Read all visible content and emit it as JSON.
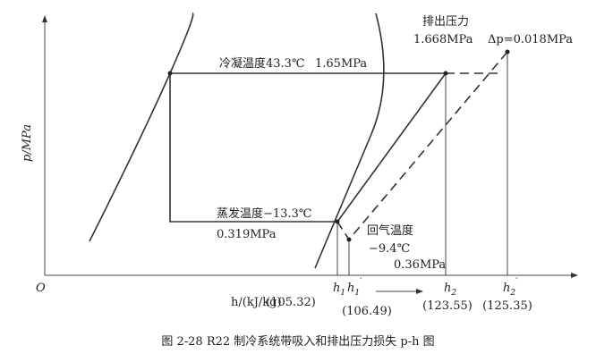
{
  "axes": {
    "y_label": "p/MPa",
    "origin": "O",
    "x_label": "h/(kJ/kg)"
  },
  "condensing": {
    "label": "冷凝温度43.3℃",
    "pressure": "1.65MPa"
  },
  "discharge": {
    "title": "排出压力",
    "pressure": "1.668MPa",
    "delta": "Δp=0.018MPa"
  },
  "evaporating": {
    "label": "蒸发温度−13.3℃",
    "pressure": "0.319MPa"
  },
  "suction": {
    "label": "回气温度",
    "temperature": "−9.4℃",
    "pressure": "0.36MPa"
  },
  "h_points": [
    {
      "symbol": "h",
      "sub": "1",
      "sup": "",
      "value": "(105.32)"
    },
    {
      "symbol": "h",
      "sub": "1",
      "sup": "′",
      "value": "(106.49)"
    },
    {
      "symbol": "h",
      "sub": "2",
      "sup": "",
      "value": "(123.55)"
    },
    {
      "symbol": "h",
      "sub": "2",
      "sup": "′",
      "value": "(125.35)"
    }
  ],
  "caption": "图 2-28   R22 制冷系统带吸入和排出压力损失 p-h 图"
}
